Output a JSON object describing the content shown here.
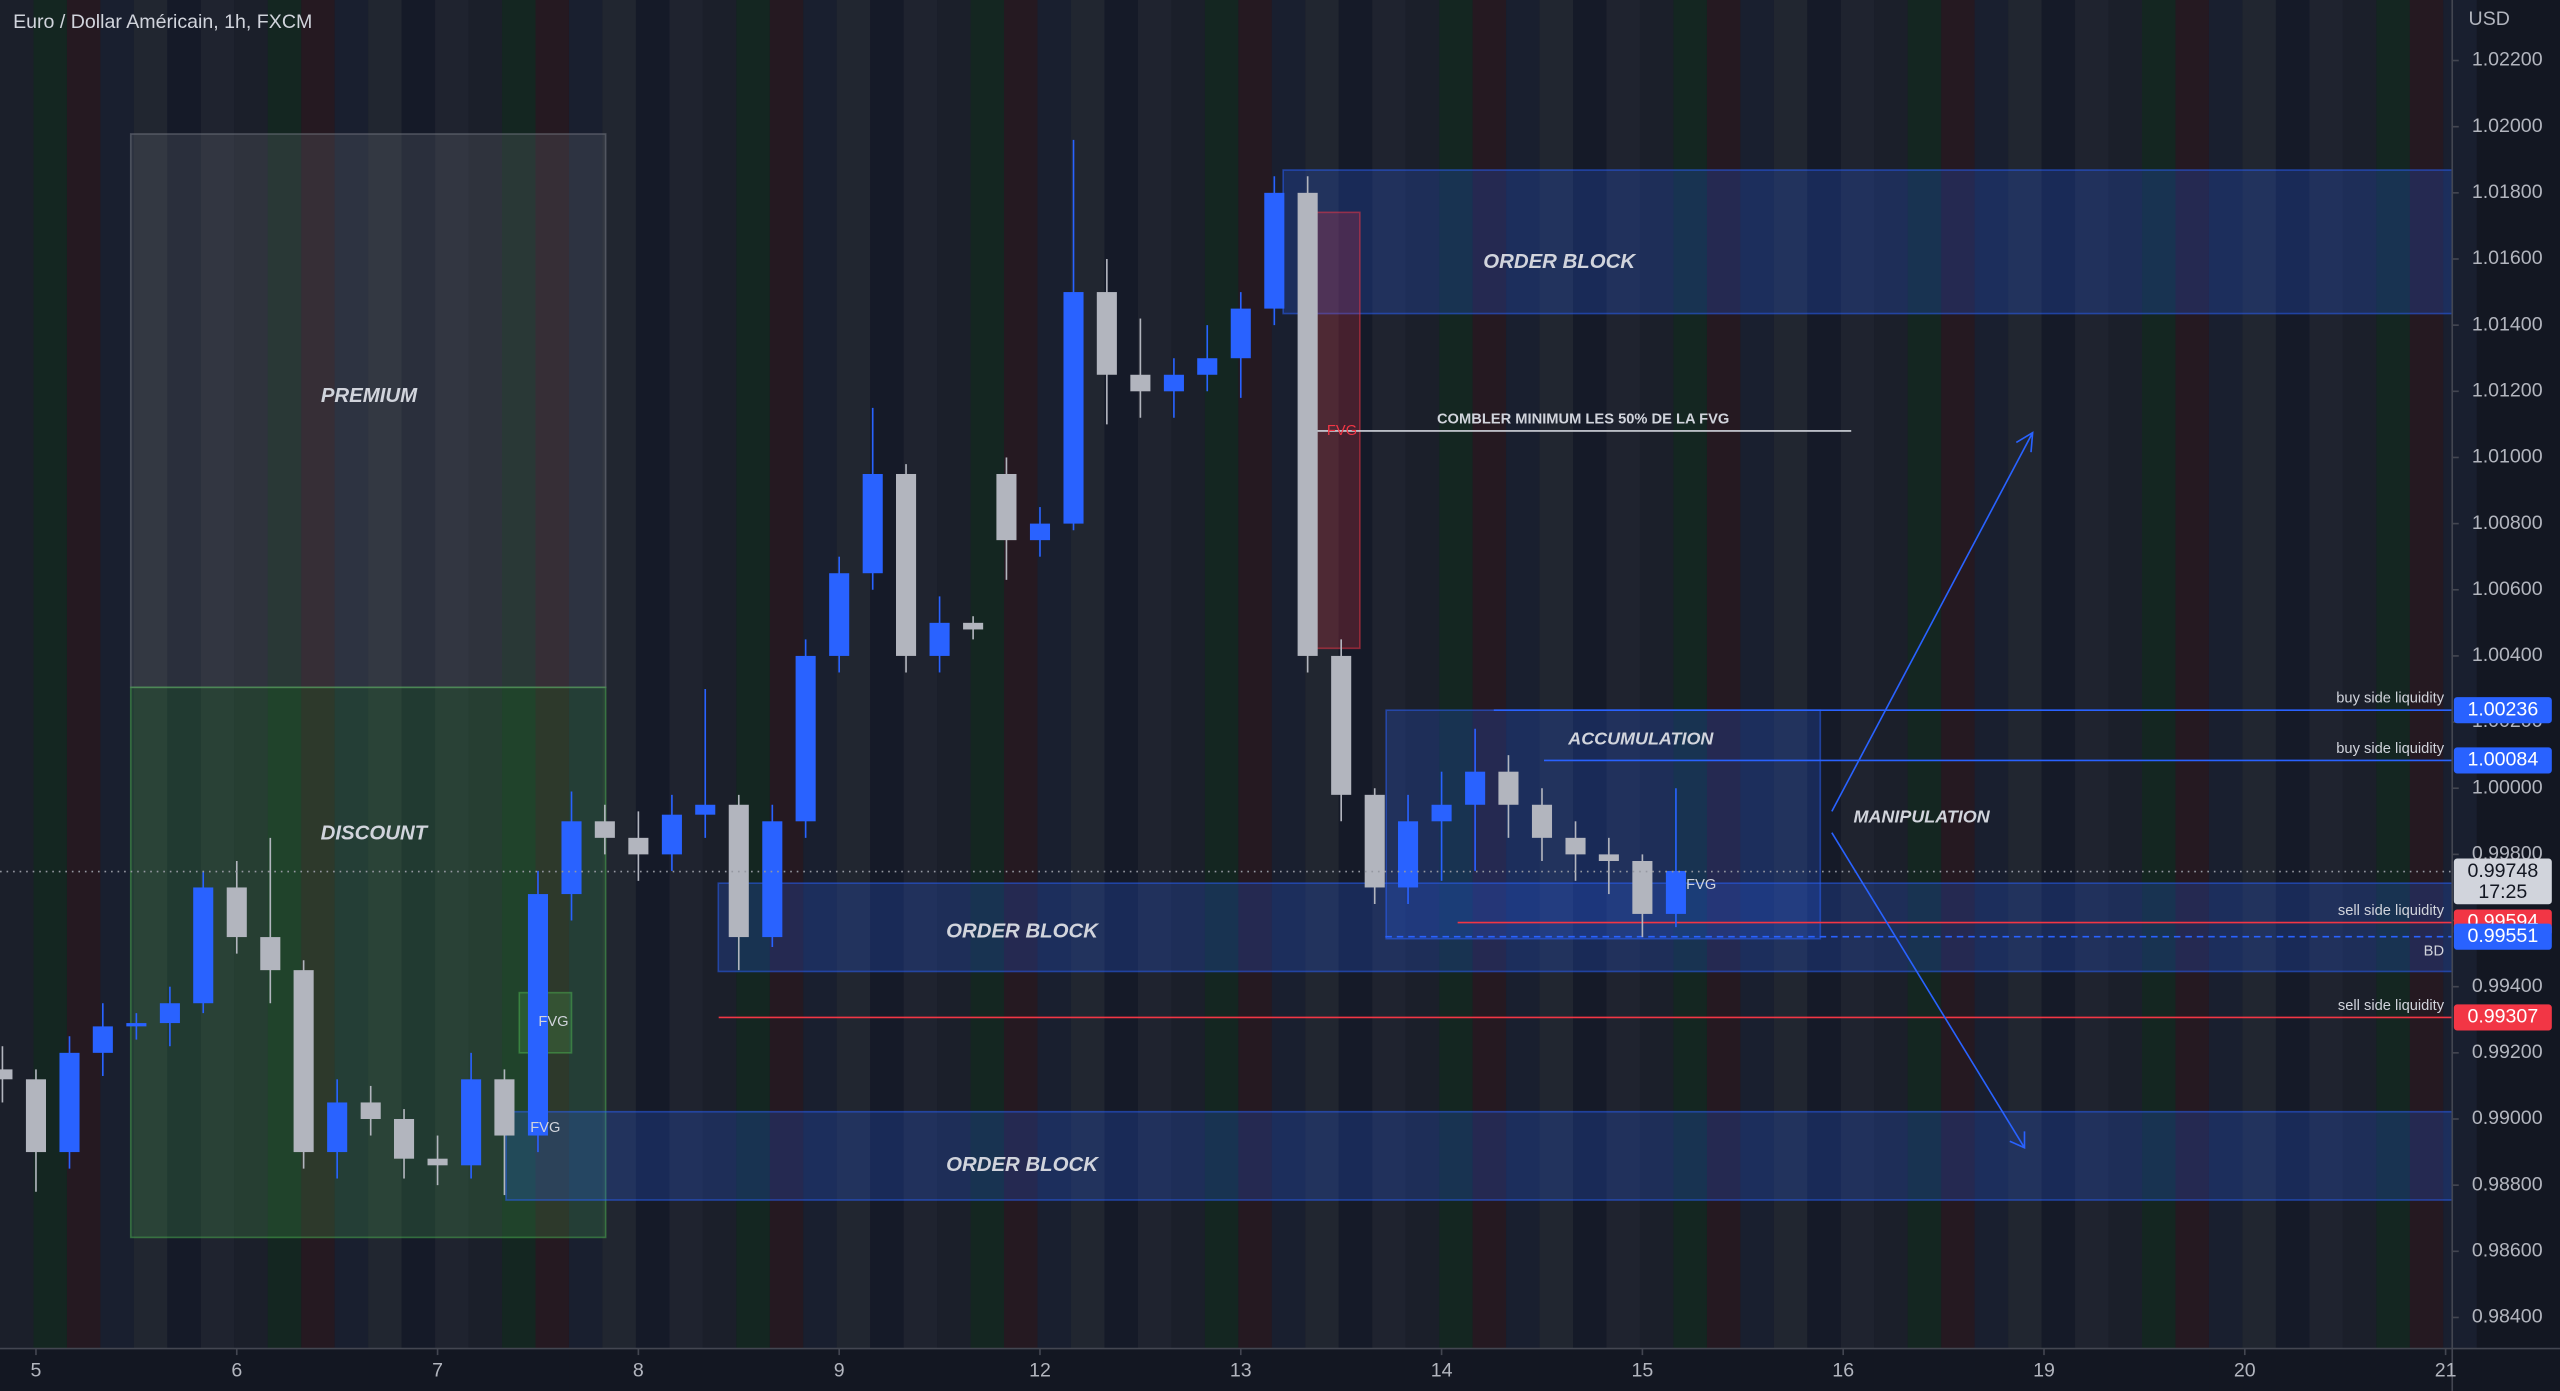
{
  "chart_data": {
    "type": "candlestick",
    "title": "Euro / Dollar Américain, 1h, FXCM",
    "currency_label": "USD",
    "x": [
      -0.167,
      0,
      0.167,
      0.333,
      0.5,
      0.667,
      0.833,
      1,
      1.167,
      1.333,
      1.5,
      1.667,
      1.833,
      2,
      2.167,
      2.333,
      2.5,
      2.667,
      2.833,
      3,
      3.167,
      3.333,
      3.5,
      3.667,
      3.833,
      4,
      4.167,
      4.333,
      4.5,
      4.667,
      4.833,
      5,
      5.167,
      5.333,
      5.5,
      5.667,
      5.833,
      6,
      6.167,
      6.333,
      6.5,
      6.667,
      6.833,
      7,
      7.167,
      7.333,
      7.5,
      7.667,
      7.833,
      8,
      8.167
    ],
    "open": [
      0.9915,
      0.9912,
      0.989,
      0.992,
      0.9928,
      0.9929,
      0.9935,
      0.997,
      0.9955,
      0.9945,
      0.989,
      0.9905,
      0.99,
      0.9888,
      0.9886,
      0.9912,
      0.9895,
      0.9968,
      0.999,
      0.9985,
      0.998,
      0.9992,
      0.9995,
      0.9955,
      0.999,
      1.004,
      1.0065,
      1.0095,
      1.004,
      1.005,
      1.0095,
      1.0075,
      1.008,
      1.015,
      1.0125,
      1.012,
      1.0125,
      1.013,
      1.0145,
      1.018,
      1.004,
      0.9998,
      0.997,
      0.999,
      0.9995,
      1.0005,
      0.9995,
      0.9985,
      0.998,
      0.9978,
      0.9962
    ],
    "high": [
      0.9922,
      0.9915,
      0.9925,
      0.9935,
      0.9932,
      0.994,
      0.9975,
      0.9978,
      0.9985,
      0.9948,
      0.9912,
      0.991,
      0.9903,
      0.9895,
      0.992,
      0.9915,
      0.9975,
      0.9999,
      0.9995,
      0.9993,
      0.9998,
      1.003,
      0.9998,
      0.9995,
      1.0045,
      1.007,
      1.0115,
      1.0098,
      1.0058,
      1.0052,
      1.01,
      1.0085,
      1.0196,
      1.016,
      1.0142,
      1.013,
      1.014,
      1.015,
      1.0185,
      1.0185,
      1.0045,
      1.0,
      0.9998,
      1.0005,
      1.0018,
      1.001,
      1.0,
      0.999,
      0.9985,
      0.998,
      1.0
    ],
    "low": [
      0.9905,
      0.9878,
      0.9885,
      0.9913,
      0.9924,
      0.9922,
      0.9932,
      0.995,
      0.9935,
      0.9885,
      0.9882,
      0.9895,
      0.9882,
      0.988,
      0.9882,
      0.9877,
      0.989,
      0.996,
      0.998,
      0.9972,
      0.9975,
      0.9985,
      0.9945,
      0.9952,
      0.9985,
      1.0035,
      1.006,
      1.0035,
      1.0035,
      1.0045,
      1.0063,
      1.007,
      1.0078,
      1.011,
      1.0112,
      1.0112,
      1.012,
      1.0118,
      1.014,
      1.0035,
      0.999,
      0.9965,
      0.9965,
      0.9972,
      0.9975,
      0.9985,
      0.9978,
      0.9972,
      0.9968,
      0.9955,
      0.9958
    ],
    "close": [
      0.9912,
      0.989,
      0.992,
      0.9928,
      0.9929,
      0.9935,
      0.997,
      0.9955,
      0.9945,
      0.989,
      0.9905,
      0.99,
      0.9888,
      0.9886,
      0.9912,
      0.9895,
      0.9968,
      0.999,
      0.9985,
      0.998,
      0.9992,
      0.9995,
      0.9955,
      0.999,
      1.004,
      1.0065,
      1.0095,
      1.004,
      1.005,
      1.0048,
      1.0075,
      1.008,
      1.015,
      1.0125,
      1.012,
      1.0125,
      1.013,
      1.0145,
      1.018,
      1.004,
      0.9998,
      0.997,
      0.999,
      0.9995,
      1.0005,
      0.9995,
      0.9985,
      0.998,
      0.9978,
      0.9962,
      0.9975
    ],
    "up_color": "#2962ff",
    "down_color": "#b2b5be",
    "xlim": [
      -0.179,
      12.033
    ],
    "ylim": [
      0.98306,
      1.02383
    ],
    "xticks": [
      {
        "value": 0,
        "label": "5"
      },
      {
        "value": 1,
        "label": "6"
      },
      {
        "value": 2,
        "label": "7"
      },
      {
        "value": 3,
        "label": "8"
      },
      {
        "value": 4,
        "label": "9"
      },
      {
        "value": 5,
        "label": "12"
      },
      {
        "value": 6,
        "label": "13"
      },
      {
        "value": 7,
        "label": "14"
      },
      {
        "value": 8,
        "label": "15"
      },
      {
        "value": 9,
        "label": "16"
      },
      {
        "value": 10,
        "label": "19"
      },
      {
        "value": 11,
        "label": "20"
      },
      {
        "value": 12,
        "label": "21"
      }
    ],
    "yticks": [
      {
        "value": 0.984,
        "label": "0.98400"
      },
      {
        "value": 0.986,
        "label": "0.98600"
      },
      {
        "value": 0.988,
        "label": "0.98800"
      },
      {
        "value": 0.99,
        "label": "0.99000"
      },
      {
        "value": 0.992,
        "label": "0.99200"
      },
      {
        "value": 0.994,
        "label": "0.99400"
      },
      {
        "value": 0.996,
        "label": "0.99600"
      },
      {
        "value": 0.998,
        "label": "0.99800"
      },
      {
        "value": 1.0,
        "label": "1.00000"
      },
      {
        "value": 1.002,
        "label": "1.00200"
      },
      {
        "value": 1.004,
        "label": "1.00400"
      },
      {
        "value": 1.006,
        "label": "1.00600"
      },
      {
        "value": 1.008,
        "label": "1.00800"
      },
      {
        "value": 1.01,
        "label": "1.01000"
      },
      {
        "value": 1.012,
        "label": "1.01200"
      },
      {
        "value": 1.014,
        "label": "1.01400"
      },
      {
        "value": 1.016,
        "label": "1.01600"
      },
      {
        "value": 1.018,
        "label": "1.01800"
      },
      {
        "value": 1.02,
        "label": "1.02000"
      },
      {
        "value": 1.022,
        "label": "1.02200"
      }
    ],
    "zones": [
      {
        "label": "PREMIUM",
        "x": [
          0.472,
          2.837
        ],
        "y": [
          1.00305,
          1.01978
        ],
        "color": "#787b86"
      },
      {
        "label": "DISCOUNT",
        "x": [
          0.472,
          2.837
        ],
        "y": [
          0.98642,
          1.00305
        ],
        "color": "#4caf50"
      },
      {
        "label": "ORDER BLOCK",
        "x": [
          6.211,
          12.033
        ],
        "y": [
          1.01435,
          1.01869
        ],
        "color": "#2962ff"
      },
      {
        "label": "ORDER BLOCK",
        "x": [
          3.398,
          12.033
        ],
        "y": [
          0.99446,
          0.99713
        ],
        "color": "#2962ff"
      },
      {
        "label": "ORDER BLOCK",
        "x": [
          2.341,
          12.033
        ],
        "y": [
          0.98755,
          0.99022
        ],
        "color": "#2962ff"
      },
      {
        "label": "ACCUMULATION",
        "x": [
          6.724,
          8.886
        ],
        "y": [
          0.99545,
          1.00236
        ],
        "color": "#2962ff"
      },
      {
        "label": "FVG",
        "x": [
          6.35,
          6.593
        ],
        "y": [
          1.00423,
          1.01741
        ],
        "color": "#f23645"
      },
      {
        "label": "FVG",
        "x": [
          2.407,
          2.667
        ],
        "y": [
          0.992,
          0.99382
        ],
        "color": "#4caf50"
      }
    ],
    "levels": [
      {
        "label": "buy side liquidity",
        "value": 1.00236,
        "x_start": 7.26,
        "color": "#2962ff"
      },
      {
        "label": "buy side liquidity",
        "value": 1.00084,
        "x_start": 7.51,
        "color": "#2962ff"
      },
      {
        "label": "sell side liquidity",
        "value": 0.99594,
        "x_start": 7.08,
        "color": "#f23645"
      },
      {
        "label": "BD",
        "value": 0.99551,
        "x_start": 6.72,
        "color": "#2962ff",
        "dashed": true
      },
      {
        "label": "sell side liquidity",
        "value": 0.99307,
        "x_start": 3.4,
        "color": "#f23645"
      },
      {
        "label": "COMBLER MINIMUM LES 50% DE LA FVG",
        "value": 1.0108,
        "x_start": 6.37,
        "x_end": 9.04,
        "color": "#d1d4dc"
      }
    ],
    "last_price": 0.99748,
    "countdown": "17:25",
    "texts": {
      "manipulation": "MANIPULATION",
      "fvg_low": "FVG",
      "fvg_right": "FVG"
    }
  }
}
